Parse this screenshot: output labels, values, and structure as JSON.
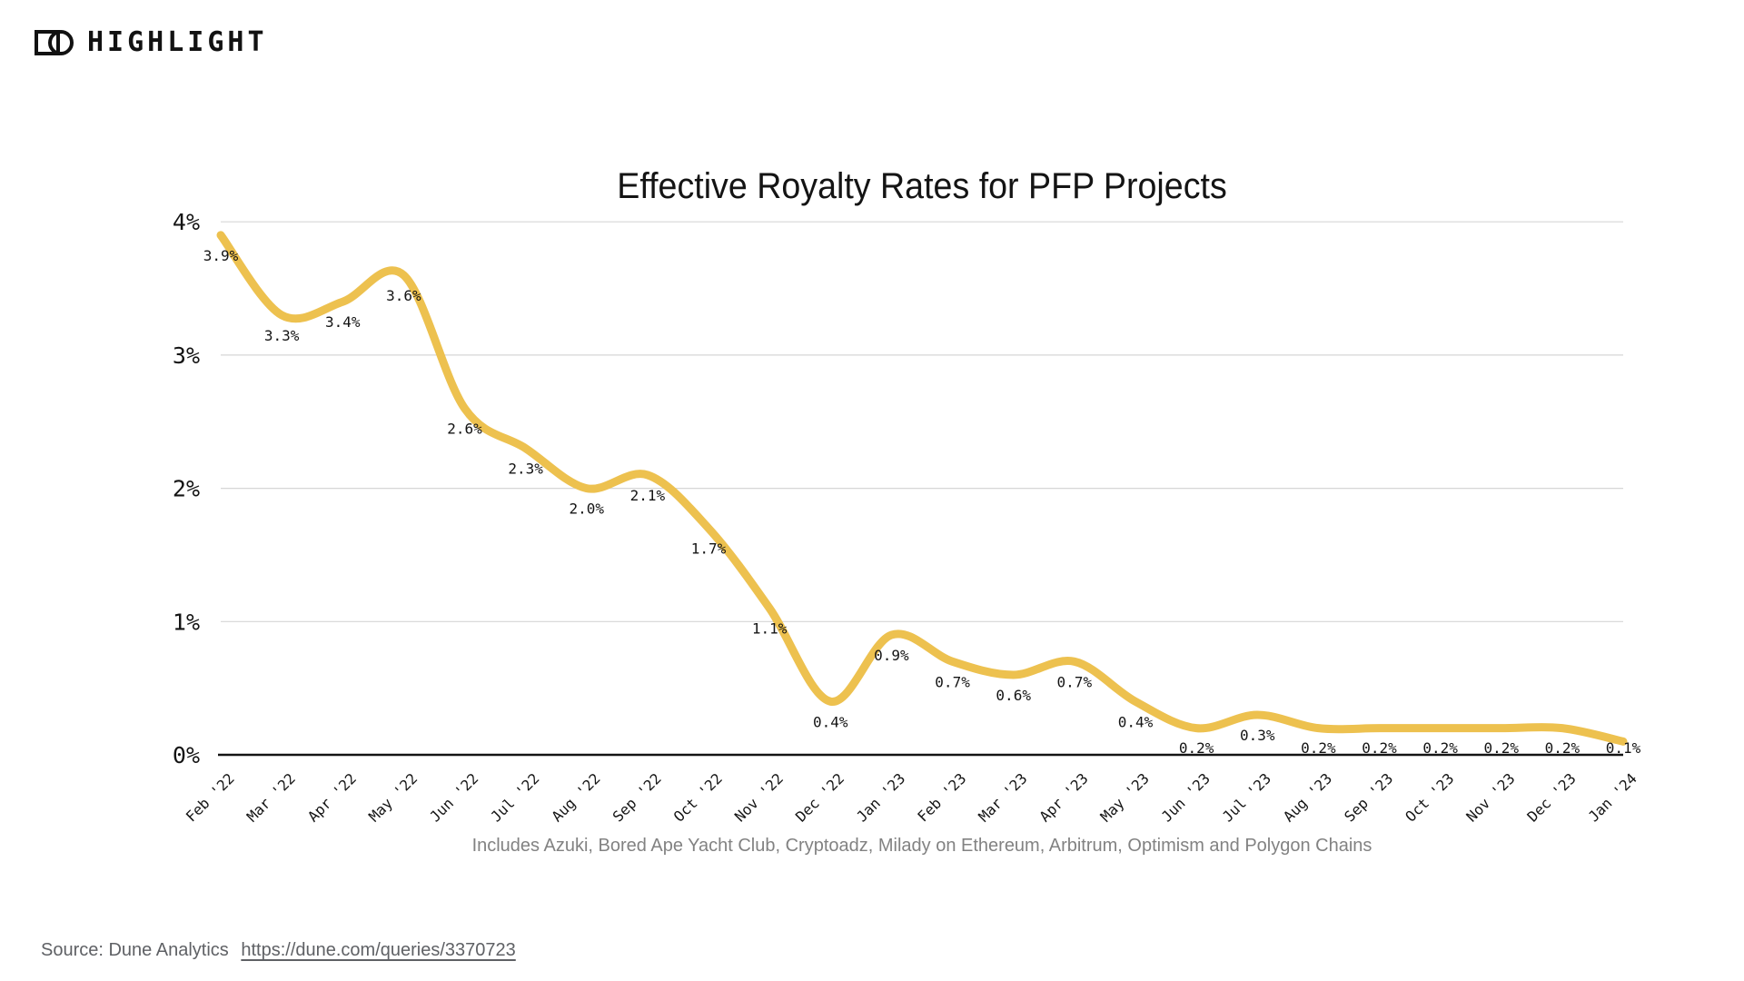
{
  "branding": {
    "logo_text": "HIGHLIGHT"
  },
  "chart_data": {
    "type": "line",
    "title": "Effective Royalty Rates for PFP Projects",
    "x": [
      "Feb '22",
      "Mar '22",
      "Apr '22",
      "May '22",
      "Jun '22",
      "Jul '22",
      "Aug '22",
      "Sep '22",
      "Oct '22",
      "Nov '22",
      "Dec '22",
      "Jan '23",
      "Feb '23",
      "Mar '23",
      "Apr '23",
      "May '23",
      "Jun '23",
      "Jul '23",
      "Aug '23",
      "Sep '23",
      "Oct '23",
      "Nov '23",
      "Dec '23",
      "Jan '24"
    ],
    "values": [
      3.9,
      3.3,
      3.4,
      3.6,
      2.6,
      2.3,
      2.0,
      2.1,
      1.7,
      1.1,
      0.4,
      0.9,
      0.7,
      0.6,
      0.7,
      0.4,
      0.2,
      0.3,
      0.2,
      0.2,
      0.2,
      0.2,
      0.2,
      0.1
    ],
    "point_labels": [
      "3.9%",
      "3.3%",
      "3.4%",
      "3.6%",
      "2.6%",
      "2.3%",
      "2.0%",
      "2.1%",
      "1.7%",
      "1.1%",
      "0.4%",
      "0.9%",
      "0.7%",
      "0.6%",
      "0.7%",
      "0.4%",
      "0.2%",
      "0.3%",
      "0.2%",
      "0.2%",
      "0.2%",
      "0.2%",
      "0.2%",
      "0.1%"
    ],
    "xlabel": "",
    "ylabel": "",
    "ylim": [
      0,
      4
    ],
    "yticks": [
      {
        "value": 0,
        "label": "0%"
      },
      {
        "value": 1,
        "label": "1%"
      },
      {
        "value": 2,
        "label": "2%"
      },
      {
        "value": 3,
        "label": "3%"
      },
      {
        "value": 4,
        "label": "4%"
      }
    ],
    "grid": "horizontal",
    "legend": "none",
    "line_color": "#EDC14F",
    "grid_color": "#D6D6D6",
    "axis_color": "#141414",
    "footnote": "Includes Azuki, Bored Ape Yacht Club, Cryptoadz, Milady on Ethereum, Arbitrum, Optimism and Polygon Chains"
  },
  "source": {
    "prefix": "Source: Dune Analytics",
    "url": "https://dune.com/queries/3370723"
  }
}
